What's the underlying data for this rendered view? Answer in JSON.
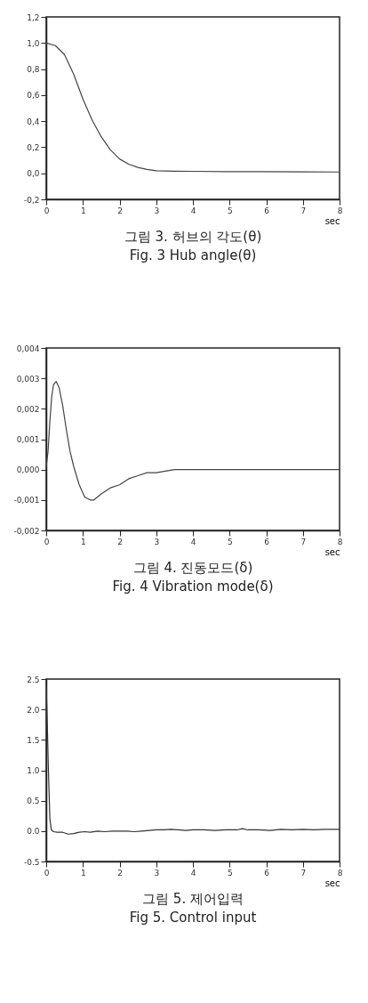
{
  "chart_data": [
    {
      "type": "line",
      "annotations": [
        "그림 3. 허브의 각도(θ)",
        "Fig. 3 Hub angle(θ)"
      ],
      "xlabel": "sec",
      "xlim": [
        0,
        8
      ],
      "xticks": [
        0,
        1,
        2,
        3,
        4,
        5,
        6,
        7,
        8
      ],
      "ylim": [
        -0.2,
        1.2
      ],
      "yticks": [
        {
          "value": -0.2,
          "label": "-0,2"
        },
        {
          "value": 0,
          "label": "0,0"
        },
        {
          "value": 0.2,
          "label": "0,2"
        },
        {
          "value": 0.4,
          "label": "0,4"
        },
        {
          "value": 0.6,
          "label": "0,6"
        },
        {
          "value": 0.8,
          "label": "0,8"
        },
        {
          "value": 1,
          "label": "1,0"
        },
        {
          "value": 1.2,
          "label": "1,2"
        }
      ],
      "x": [
        0,
        0.25,
        0.5,
        0.75,
        1,
        1.25,
        1.5,
        1.75,
        2,
        2.25,
        2.5,
        2.75,
        3,
        3.25,
        3.5,
        4,
        5,
        6,
        7,
        8
      ],
      "series": [
        {
          "color": "#444444",
          "values": [
            1.0,
            0.98,
            0.91,
            0.76,
            0.57,
            0.41,
            0.28,
            0.18,
            0.11,
            0.07,
            0.045,
            0.03,
            0.02,
            0.018,
            0.016,
            0.015,
            0.013,
            0.012,
            0.011,
            0.01
          ]
        }
      ]
    },
    {
      "type": "line",
      "annotations": [
        "그림 4. 진동모드(δ)",
        "Fig. 4 Vibration mode(δ)"
      ],
      "xlabel": "sec",
      "xlim": [
        0,
        8
      ],
      "xticks": [
        0,
        1,
        2,
        3,
        4,
        5,
        6,
        7,
        8
      ],
      "ylim": [
        -0.002,
        0.004
      ],
      "yticks": [
        {
          "value": -0.002,
          "label": "-0,002"
        },
        {
          "value": -0.001,
          "label": "-0,001"
        },
        {
          "value": 0,
          "label": "0,000"
        },
        {
          "value": 0.001,
          "label": "0,001"
        },
        {
          "value": 0.002,
          "label": "0,002"
        },
        {
          "value": 0.003,
          "label": "0,003"
        },
        {
          "value": 0.004,
          "label": "0,004"
        }
      ],
      "x": [
        0,
        0.05,
        0.1,
        0.15,
        0.2,
        0.27,
        0.35,
        0.45,
        0.55,
        0.65,
        0.75,
        0.9,
        1.05,
        1.2,
        1.3,
        1.5,
        1.75,
        2,
        2.25,
        2.5,
        2.75,
        3,
        3.5,
        4,
        5,
        6,
        7,
        8
      ],
      "series": [
        {
          "color": "#444444",
          "values": [
            0.0001,
            0.0006,
            0.0016,
            0.0024,
            0.0028,
            0.0029,
            0.0027,
            0.0021,
            0.0013,
            0.0006,
            0.0001,
            -0.0005,
            -0.0009,
            -0.001,
            -0.001,
            -0.0008,
            -0.0006,
            -0.0005,
            -0.0003,
            -0.0002,
            -0.0001,
            -0.0001,
            0,
            0,
            0,
            0,
            0,
            0
          ]
        }
      ]
    },
    {
      "type": "line",
      "annotations": [
        "그림 5. 제어입력",
        "Fig 5. Control input"
      ],
      "xlabel": "sec",
      "xlim": [
        0,
        8
      ],
      "xticks": [
        0,
        1,
        2,
        3,
        4,
        5,
        6,
        7,
        8
      ],
      "ylim": [
        -0.5,
        2.5
      ],
      "yticks": [
        {
          "value": -0.5,
          "label": "-0.5"
        },
        {
          "value": 0,
          "label": "0.0"
        },
        0.5,
        {
          "value": 1,
          "label": "1.0"
        },
        1.5,
        {
          "value": 2,
          "label": "2.0"
        },
        2.5
      ],
      "x": [
        0,
        0.02,
        0.06,
        0.1,
        0.14,
        0.2,
        0.3,
        0.45,
        0.6,
        0.75,
        0.9,
        1.05,
        1.2,
        1.4,
        1.6,
        1.8,
        2.0,
        2.2,
        2.4,
        2.6,
        2.8,
        3.0,
        3.2,
        3.4,
        3.6,
        3.8,
        4.0,
        4.3,
        4.6,
        4.9,
        5.2,
        5.35,
        5.5,
        5.8,
        6.1,
        6.4,
        6.7,
        7.0,
        7.3,
        7.6,
        8
      ],
      "series": [
        {
          "color": "#333333",
          "values": [
            2.4,
            2.0,
            1.0,
            0.2,
            0.02,
            -0.01,
            -0.02,
            -0.02,
            -0.05,
            -0.04,
            -0.02,
            -0.01,
            -0.02,
            0.0,
            -0.01,
            0.0,
            0.0,
            0.0,
            -0.01,
            0.0,
            0.01,
            0.02,
            0.02,
            0.03,
            0.02,
            0.01,
            0.02,
            0.02,
            0.01,
            0.02,
            0.02,
            0.04,
            0.02,
            0.02,
            0.01,
            0.03,
            0.02,
            0.03,
            0.02,
            0.03,
            0.03
          ]
        }
      ]
    }
  ]
}
